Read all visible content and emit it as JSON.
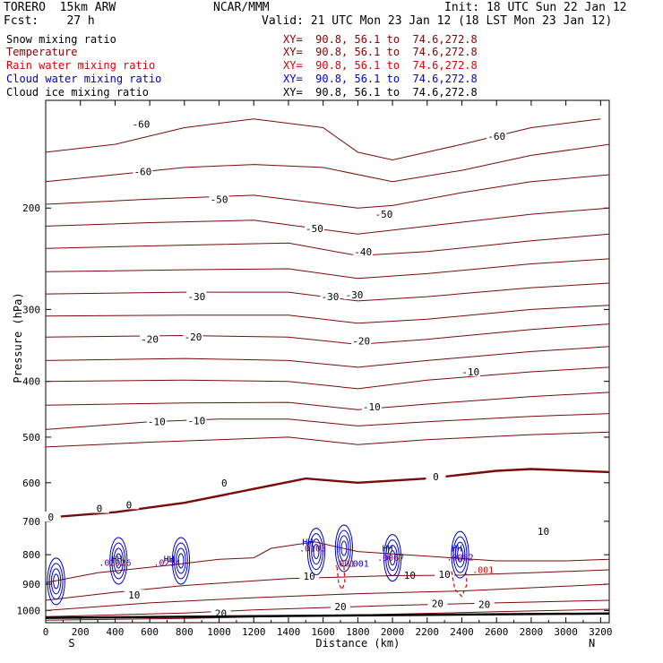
{
  "header": {
    "model": "TORERO  15km ARW",
    "center": "NCAR/MMM",
    "init": "Init: 18 UTC Sun 22 Jan 12",
    "fcst": "Fcst:    27 h",
    "valid": "Valid: 21 UTC Mon 23 Jan 12 (18 LST Mon 23 Jan 12)"
  },
  "legend": [
    {
      "label": "Snow mixing ratio",
      "xy": "",
      "color": "#000000"
    },
    {
      "label": "Temperature",
      "xy": "XY=  90.8, 56.1 to  74.6,272.8",
      "color": "#8b0000"
    },
    {
      "label": "Rain water mixing ratio",
      "xy": "XY=  90.8, 56.1 to  74.6,272.8",
      "color": "#e00000"
    },
    {
      "label": "Cloud water mixing ratio",
      "xy": "XY=  90.8, 56.1 to  74.6,272.8",
      "color": "#0000cc"
    },
    {
      "label": "Cloud ice mixing ratio",
      "xy": "XY=  90.8, 56.1 to  74.6,272.8",
      "color": "#000000"
    }
  ],
  "legend_xy_top": "XY=  90.8, 56.1 to  74.6,272.8",
  "chart_data": {
    "type": "line",
    "title": "",
    "xlabel": "Distance (km)",
    "ylabel": "Pressure (hPa)",
    "xlim": [
      0,
      3250
    ],
    "ylim": [
      1050,
      100
    ],
    "y_scale": "log",
    "x_ticks": [
      0,
      200,
      400,
      600,
      800,
      1000,
      1200,
      1400,
      1600,
      1800,
      2000,
      2200,
      2400,
      2600,
      2800,
      3000,
      3200
    ],
    "x_tick_labels": [
      "0",
      "200",
      "400",
      "600",
      "800",
      "1000",
      "1200",
      "1400",
      "1600",
      "1800",
      "2000",
      "2200",
      "2400",
      "2600",
      "2800",
      "3000",
      "3200"
    ],
    "y_ticks": [
      200,
      300,
      400,
      500,
      600,
      700,
      800,
      900,
      1000
    ],
    "y_tick_labels": [
      "200",
      "300",
      "400",
      "500",
      "600",
      "700",
      "800",
      "900",
      "1000"
    ],
    "x_end_labels": [
      "S",
      "N"
    ],
    "ground_pressure": [
      1030,
      1012
    ],
    "temperature_isotherms": [
      {
        "value": -60,
        "points": [
          [
            0,
            160
          ],
          [
            400,
            155
          ],
          [
            800,
            145
          ],
          [
            1200,
            140
          ],
          [
            1600,
            145
          ],
          [
            1800,
            160
          ],
          [
            2000,
            165
          ],
          [
            2400,
            155
          ],
          [
            2800,
            145
          ],
          [
            3200,
            140
          ]
        ],
        "labels": [
          [
            550,
            143,
            "-60"
          ],
          [
            2600,
            150,
            "-60"
          ]
        ]
      },
      {
        "value": -60,
        "points": [
          [
            0,
            180
          ],
          [
            400,
            175
          ],
          [
            800,
            170
          ],
          [
            1200,
            168
          ],
          [
            1600,
            170
          ],
          [
            2000,
            180
          ],
          [
            2400,
            172
          ],
          [
            2800,
            162
          ],
          [
            3250,
            155
          ]
        ],
        "labels": [
          [
            560,
            173,
            "-60"
          ]
        ]
      },
      {
        "value": -50,
        "points": [
          [
            0,
            197
          ],
          [
            600,
            193
          ],
          [
            1200,
            190
          ],
          [
            1800,
            200
          ],
          [
            2000,
            198
          ],
          [
            2400,
            188
          ],
          [
            2800,
            180
          ],
          [
            3250,
            175
          ]
        ],
        "labels": [
          [
            1000,
            193,
            "-50"
          ]
        ]
      },
      {
        "value": -50,
        "points": [
          [
            0,
            215
          ],
          [
            600,
            212
          ],
          [
            1200,
            210
          ],
          [
            1800,
            222
          ],
          [
            2200,
            215
          ],
          [
            2800,
            205
          ],
          [
            3250,
            200
          ]
        ],
        "labels": [
          [
            1550,
            217,
            "-50"
          ],
          [
            1950,
            205,
            "-50"
          ]
        ]
      },
      {
        "value": -40,
        "points": [
          [
            0,
            235
          ],
          [
            800,
            232
          ],
          [
            1400,
            230
          ],
          [
            1800,
            242
          ],
          [
            2200,
            238
          ],
          [
            2800,
            228
          ],
          [
            3250,
            222
          ]
        ],
        "labels": [
          [
            1830,
            238,
            "-40"
          ]
        ]
      },
      {
        "value": -40,
        "points": [
          [
            0,
            258
          ],
          [
            800,
            256
          ],
          [
            1400,
            255
          ],
          [
            1800,
            265
          ],
          [
            2200,
            260
          ],
          [
            2800,
            250
          ],
          [
            3250,
            245
          ]
        ],
        "labels": []
      },
      {
        "value": -30,
        "points": [
          [
            0,
            282
          ],
          [
            800,
            280
          ],
          [
            1400,
            280
          ],
          [
            1800,
            290
          ],
          [
            2200,
            285
          ],
          [
            2800,
            275
          ],
          [
            3250,
            270
          ]
        ],
        "labels": [
          [
            870,
            285,
            "-30"
          ],
          [
            1640,
            285,
            "-30"
          ],
          [
            1780,
            283,
            "-30"
          ]
        ]
      },
      {
        "value": -30,
        "points": [
          [
            0,
            308
          ],
          [
            800,
            307
          ],
          [
            1400,
            307
          ],
          [
            1800,
            317
          ],
          [
            2200,
            312
          ],
          [
            2800,
            300
          ],
          [
            3250,
            295
          ]
        ],
        "labels": []
      },
      {
        "value": -20,
        "points": [
          [
            0,
            335
          ],
          [
            800,
            333
          ],
          [
            1400,
            335
          ],
          [
            1800,
            345
          ],
          [
            2200,
            338
          ],
          [
            2800,
            325
          ],
          [
            3250,
            318
          ]
        ],
        "labels": [
          [
            600,
            338,
            "-20"
          ],
          [
            850,
            335,
            "-20"
          ],
          [
            1820,
            340,
            "-20"
          ]
        ]
      },
      {
        "value": -20,
        "points": [
          [
            0,
            368
          ],
          [
            800,
            365
          ],
          [
            1400,
            368
          ],
          [
            1800,
            378
          ],
          [
            2200,
            368
          ],
          [
            2800,
            355
          ],
          [
            3250,
            348
          ]
        ],
        "labels": []
      },
      {
        "value": -10,
        "points": [
          [
            0,
            400
          ],
          [
            800,
            398
          ],
          [
            1400,
            400
          ],
          [
            1800,
            412
          ],
          [
            2200,
            398
          ],
          [
            2800,
            385
          ],
          [
            3250,
            378
          ]
        ],
        "labels": [
          [
            2450,
            385,
            "-10"
          ]
        ]
      },
      {
        "value": -10,
        "points": [
          [
            0,
            440
          ],
          [
            800,
            436
          ],
          [
            1400,
            435
          ],
          [
            1800,
            448
          ],
          [
            2200,
            438
          ],
          [
            2800,
            425
          ],
          [
            3250,
            418
          ]
        ],
        "labels": [
          [
            1880,
            443,
            "-10"
          ]
        ]
      },
      {
        "value": -10,
        "points": [
          [
            0,
            485
          ],
          [
            600,
            470
          ],
          [
            1000,
            465
          ],
          [
            1400,
            465
          ],
          [
            1800,
            478
          ],
          [
            2200,
            470
          ],
          [
            2800,
            460
          ],
          [
            3250,
            455
          ]
        ],
        "labels": [
          [
            640,
            470,
            "-10"
          ],
          [
            870,
            468,
            "-10"
          ]
        ]
      },
      {
        "value": -10,
        "points": [
          [
            0,
            520
          ],
          [
            600,
            510
          ],
          [
            1000,
            505
          ],
          [
            1400,
            500
          ],
          [
            1800,
            515
          ],
          [
            2200,
            505
          ],
          [
            2800,
            495
          ],
          [
            3250,
            490
          ]
        ],
        "labels": []
      },
      {
        "value": 0,
        "points": [
          [
            0,
            690
          ],
          [
            400,
            675
          ],
          [
            800,
            650
          ],
          [
            1200,
            615
          ],
          [
            1500,
            590
          ],
          [
            1800,
            600
          ],
          [
            2200,
            590
          ],
          [
            2600,
            572
          ],
          [
            2800,
            568
          ],
          [
            3250,
            575
          ]
        ],
        "labels": [
          [
            30,
            688,
            "0"
          ],
          [
            310,
            665,
            "0"
          ],
          [
            480,
            655,
            "0"
          ],
          [
            1030,
            600,
            "0"
          ],
          [
            2250,
            585,
            "0"
          ]
        ],
        "bold": true
      },
      {
        "value": 10,
        "points": [
          [
            0,
            895
          ],
          [
            300,
            860
          ],
          [
            700,
            835
          ],
          [
            1000,
            815
          ],
          [
            1200,
            810
          ],
          [
            1300,
            780
          ],
          [
            1550,
            760
          ],
          [
            1800,
            790
          ],
          [
            2200,
            805
          ],
          [
            2600,
            820
          ],
          [
            3000,
            820
          ],
          [
            3250,
            815
          ]
        ],
        "labels": [
          [
            2100,
            868,
            "10"
          ],
          [
            2870,
            728,
            "10"
          ]
        ]
      },
      {
        "value": 10,
        "points": [
          [
            0,
            960
          ],
          [
            400,
            930
          ],
          [
            800,
            905
          ],
          [
            1400,
            880
          ],
          [
            1700,
            875
          ],
          [
            2000,
            870
          ],
          [
            2400,
            868
          ],
          [
            2800,
            860
          ],
          [
            3250,
            850
          ]
        ],
        "labels": [
          [
            1520,
            872,
            "10"
          ],
          [
            2300,
            865,
            "10"
          ]
        ]
      },
      {
        "value": 10,
        "points": [
          [
            0,
            1000
          ],
          [
            600,
            970
          ],
          [
            1200,
            950
          ],
          [
            1800,
            935
          ],
          [
            2400,
            925
          ],
          [
            3250,
            900
          ]
        ],
        "labels": [
          [
            510,
            940,
            "10"
          ]
        ]
      },
      {
        "value": 20,
        "points": [
          [
            0,
            1025
          ],
          [
            800,
            1010
          ],
          [
            1200,
            998
          ],
          [
            2000,
            980
          ],
          [
            2600,
            970
          ],
          [
            3250,
            960
          ]
        ],
        "labels": [
          [
            1700,
            985,
            "20"
          ],
          [
            2260,
            973,
            "20"
          ],
          [
            2530,
            976,
            "20"
          ],
          [
            1010,
            1012,
            "20"
          ]
        ]
      },
      {
        "value": 20,
        "points": [
          [
            0,
            1040
          ],
          [
            800,
            1032
          ],
          [
            1800,
            1018
          ],
          [
            2600,
            1005
          ],
          [
            3250,
            995
          ]
        ],
        "labels": []
      }
    ],
    "rain_water_contours": [
      {
        "points": [
          [
            1680,
            840
          ],
          [
            1690,
            900
          ],
          [
            1710,
            920
          ],
          [
            1725,
            890
          ],
          [
            1720,
            840
          ]
        ],
        "label": [
          1660,
          840,
          ".001"
        ]
      },
      {
        "points": [
          [
            2340,
            855
          ],
          [
            2360,
            920
          ],
          [
            2400,
            945
          ],
          [
            2430,
            900
          ],
          [
            2420,
            850
          ]
        ],
        "label": [
          2460,
          860,
          ".001"
        ]
      }
    ],
    "cloud_water_contours": [
      {
        "center": [
          1720,
          780
        ],
        "label": [
          1740,
          840,
          ".001"
        ]
      },
      {
        "center": [
          2000,
          810
        ]
      },
      {
        "center": [
          2390,
          800
        ]
      },
      {
        "center": [
          1560,
          790
        ]
      },
      {
        "center": [
          420,
          820
        ]
      },
      {
        "center": [
          780,
          820
        ]
      },
      {
        "center": [
          60,
          890
        ]
      }
    ],
    "snow_ice_labels": [
      {
        "x": 400,
        "p": 837,
        "text": ".02926"
      },
      {
        "x": 700,
        "p": 837,
        "text": ".0254"
      },
      {
        "x": 1540,
        "p": 790,
        "text": ".0103"
      },
      {
        "x": 1990,
        "p": 820,
        "text": ".0067"
      },
      {
        "x": 2390,
        "p": 818,
        "text": ".0082"
      }
    ],
    "hh_markers": [
      {
        "x": 380,
        "p": 825
      },
      {
        "x": 680,
        "p": 825
      },
      {
        "x": 1480,
        "p": 770
      },
      {
        "x": 1940,
        "p": 790
      },
      {
        "x": 2340,
        "p": 790
      }
    ]
  }
}
